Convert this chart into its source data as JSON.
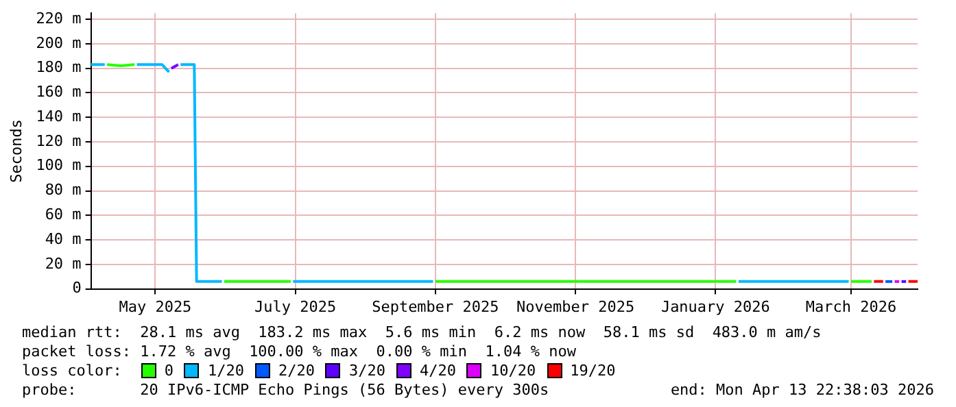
{
  "chart_data": {
    "type": "line",
    "ylabel": "Seconds",
    "legend_title": "loss color:",
    "legend": "bottom",
    "grid": true,
    "marker": "none",
    "line_style": "solid",
    "xlim": [
      "2025-04-18",
      "2026-04-13"
    ],
    "xticks": [
      {
        "value": "2025-05-16",
        "label": "May 2025"
      },
      {
        "value": "2025-07-16",
        "label": "July 2025"
      },
      {
        "value": "2025-09-15",
        "label": "September 2025"
      },
      {
        "value": "2025-11-15",
        "label": "November 2025"
      },
      {
        "value": "2026-01-15",
        "label": "January 2026"
      },
      {
        "value": "2026-03-15",
        "label": "March 2026"
      }
    ],
    "ylim": [
      0,
      225
    ],
    "yticks": [
      0,
      {
        "value": 20,
        "label": "20 m"
      },
      {
        "value": 40,
        "label": "40 m"
      },
      {
        "value": 60,
        "label": "60 m"
      },
      {
        "value": 80,
        "label": "80 m"
      },
      {
        "value": 100,
        "label": "100 m"
      },
      {
        "value": 120,
        "label": "120 m"
      },
      {
        "value": 140,
        "label": "140 m"
      },
      {
        "value": 160,
        "label": "160 m"
      },
      {
        "value": 180,
        "label": "180 m"
      },
      {
        "value": 200,
        "label": "200 m"
      },
      {
        "value": 220,
        "label": "220 m"
      }
    ],
    "series": [
      {
        "name": "0",
        "color": "#26ff00",
        "x": [
          "2025-04-25",
          "2025-05-01",
          "2025-05-07",
          "2025-05-08",
          "2025-06-15",
          "2025-07-14",
          "2025-07-15",
          "2025-09-15",
          "2026-01-24",
          "2026-01-25",
          "2026-03-15",
          "2026-03-24"
        ],
        "values": [
          183,
          182,
          183,
          null,
          6,
          6,
          null,
          6,
          6,
          null,
          6,
          6
        ]
      },
      {
        "name": "1/20",
        "color": "#00b8ff",
        "x": [
          "2025-04-18",
          "2025-04-24",
          "2025-04-25",
          "2025-05-08",
          "2025-05-19",
          "2025-05-22",
          "2025-05-23",
          "2025-05-27",
          "2025-06-02",
          "2025-06-03",
          "2025-06-14",
          "2025-06-15",
          "2025-07-15",
          "2025-09-14",
          "2025-09-15",
          "2026-01-25",
          "2026-03-14"
        ],
        "values": [
          183,
          183,
          null,
          183,
          183,
          177,
          null,
          183,
          183,
          6,
          6,
          null,
          6,
          6,
          null,
          6,
          6
        ]
      },
      {
        "name": "2/20",
        "color": "#0059ff",
        "x": [
          "2026-03-30",
          "2026-04-02"
        ],
        "values": [
          6,
          6
        ]
      },
      {
        "name": "3/20",
        "color": "#5e00ff",
        "x": [
          "2026-04-06",
          "2026-04-08"
        ],
        "values": [
          6,
          6
        ]
      },
      {
        "name": "4/20",
        "color": "#7e00ff",
        "x": [
          "2025-05-23",
          "2025-05-26"
        ],
        "values": [
          180,
          183
        ]
      },
      {
        "name": "10/20",
        "color": "#dd00ff",
        "x": [
          "2026-04-03",
          "2026-04-05"
        ],
        "values": [
          6,
          6
        ]
      },
      {
        "name": "19/20",
        "color": "#ff0000",
        "x": [
          "2026-03-25",
          "2026-03-29",
          "2026-03-30",
          "2026-04-09",
          "2026-04-13"
        ],
        "values": [
          6,
          6,
          null,
          6,
          6
        ]
      }
    ],
    "annotations": [
      "median rtt:  28.1 ms avg  183.2 ms max  5.6 ms min  6.2 ms now  58.1 ms sd  483.0 m am/s",
      "packet loss: 1.72 % avg  100.00 % max  0.00 % min  1.04 % now",
      "probe:       20 IPv6-ICMP Echo Pings (56 Bytes) every 300s",
      "end: Mon Apr 13 22:38:03 2026"
    ]
  }
}
